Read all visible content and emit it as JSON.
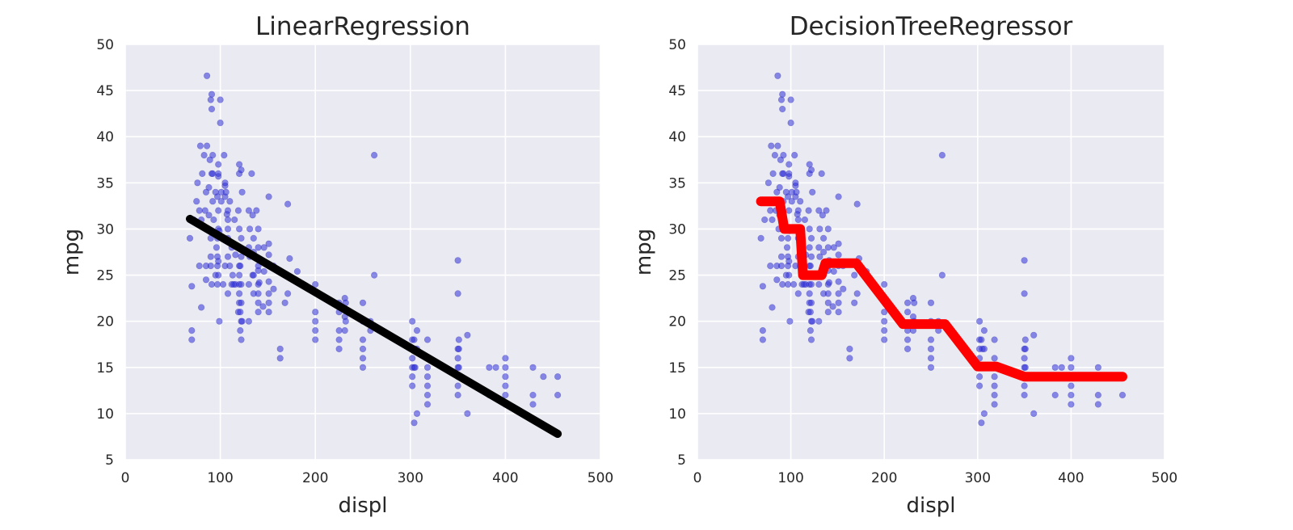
{
  "chart_data": [
    {
      "type": "scatter",
      "title": "LinearRegression",
      "xlabel": "displ",
      "ylabel": "mpg",
      "xlim": [
        0,
        500
      ],
      "ylim": [
        5,
        50
      ],
      "xticks": [
        0,
        100,
        200,
        300,
        400,
        500
      ],
      "yticks": [
        5,
        10,
        15,
        20,
        25,
        30,
        35,
        40,
        45,
        50
      ],
      "grid": true,
      "point_color": "#3030d8",
      "fit_color": "#000000",
      "fit_line": {
        "x": [
          68,
          455
        ],
        "y": [
          31.1,
          7.8
        ]
      }
    },
    {
      "type": "scatter",
      "title": "DecisionTreeRegressor",
      "xlabel": "displ",
      "ylabel": "mpg",
      "xlim": [
        0,
        500
      ],
      "ylim": [
        5,
        50
      ],
      "xticks": [
        0,
        100,
        200,
        300,
        400,
        500
      ],
      "yticks": [
        5,
        10,
        15,
        20,
        25,
        30,
        35,
        40,
        45,
        50
      ],
      "grid": true,
      "point_color": "#3030d8",
      "fit_color": "#ff0000",
      "fit_line": {
        "x": [
          68,
          88,
          93,
          110,
          113,
          117,
          133,
          137,
          170,
          220,
          225,
          265,
          300,
          320,
          350,
          455
        ],
        "y": [
          33,
          33,
          30,
          30,
          25,
          25,
          25,
          26.3,
          26.3,
          19.7,
          19.7,
          19.7,
          15.1,
          15.1,
          14.0,
          14.0
        ]
      }
    }
  ],
  "scatter_points": [
    [
      68,
      29
    ],
    [
      70,
      23.8
    ],
    [
      70,
      19
    ],
    [
      70,
      18
    ],
    [
      72,
      31
    ],
    [
      75,
      33
    ],
    [
      76,
      35
    ],
    [
      78,
      32
    ],
    [
      78,
      26
    ],
    [
      79,
      39
    ],
    [
      80,
      31
    ],
    [
      80,
      21.5
    ],
    [
      81,
      36
    ],
    [
      83,
      38
    ],
    [
      84,
      32
    ],
    [
      85,
      34
    ],
    [
      85,
      26
    ],
    [
      85,
      24.5
    ],
    [
      86,
      39
    ],
    [
      86,
      46.6
    ],
    [
      87,
      30
    ],
    [
      88,
      34.5
    ],
    [
      88,
      31.5
    ],
    [
      89,
      37.5
    ],
    [
      90,
      44
    ],
    [
      90,
      29
    ],
    [
      90,
      26
    ],
    [
      90,
      27
    ],
    [
      91,
      44.6
    ],
    [
      91,
      36
    ],
    [
      91,
      43
    ],
    [
      91,
      24
    ],
    [
      92,
      38
    ],
    [
      92,
      36
    ],
    [
      92,
      33
    ],
    [
      93,
      31
    ],
    [
      95,
      34
    ],
    [
      95,
      25
    ],
    [
      96,
      28
    ],
    [
      97,
      33.5
    ],
    [
      97,
      29
    ],
    [
      97,
      27
    ],
    [
      97,
      26
    ],
    [
      97,
      24
    ],
    [
      98,
      32
    ],
    [
      98,
      36
    ],
    [
      98,
      30
    ],
    [
      98,
      35.7
    ],
    [
      98,
      37
    ],
    [
      98,
      26.5
    ],
    [
      98,
      25
    ],
    [
      99,
      29.8
    ],
    [
      99,
      20
    ],
    [
      100,
      44
    ],
    [
      100,
      41.5
    ],
    [
      101,
      34
    ],
    [
      101,
      33
    ],
    [
      103,
      24
    ],
    [
      104,
      38
    ],
    [
      105,
      34.7
    ],
    [
      105,
      35
    ],
    [
      105,
      33.5
    ],
    [
      105,
      26
    ],
    [
      106,
      34
    ],
    [
      107,
      31.6
    ],
    [
      108,
      32
    ],
    [
      108,
      31
    ],
    [
      108,
      30
    ],
    [
      108,
      29
    ],
    [
      108,
      27
    ],
    [
      108,
      23
    ],
    [
      110,
      33
    ],
    [
      110,
      26
    ],
    [
      112,
      28
    ],
    [
      112,
      24
    ],
    [
      113,
      25
    ],
    [
      114,
      24
    ],
    [
      115,
      31
    ],
    [
      116,
      27.2
    ],
    [
      116,
      24
    ],
    [
      119,
      21
    ],
    [
      119,
      32
    ],
    [
      120,
      37
    ],
    [
      120,
      36
    ],
    [
      120,
      30
    ],
    [
      120,
      28
    ],
    [
      120,
      26
    ],
    [
      120,
      25
    ],
    [
      120,
      24
    ],
    [
      120,
      23
    ],
    [
      120,
      22
    ],
    [
      121,
      26
    ],
    [
      121,
      21
    ],
    [
      121,
      19
    ],
    [
      122,
      36.4
    ],
    [
      122,
      29
    ],
    [
      122,
      27
    ],
    [
      122,
      24
    ],
    [
      122,
      22
    ],
    [
      122,
      20
    ],
    [
      122,
      18
    ],
    [
      123,
      34
    ],
    [
      123,
      20
    ],
    [
      130,
      28
    ],
    [
      130,
      32
    ],
    [
      130,
      24
    ],
    [
      130,
      20
    ],
    [
      131,
      30
    ],
    [
      131,
      27
    ],
    [
      133,
      36
    ],
    [
      134,
      25
    ],
    [
      134,
      31.5
    ],
    [
      135,
      27.5
    ],
    [
      135,
      25
    ],
    [
      135,
      23
    ],
    [
      135,
      29
    ],
    [
      138,
      32
    ],
    [
      140,
      30
    ],
    [
      140,
      28
    ],
    [
      140,
      26
    ],
    [
      140,
      25.5
    ],
    [
      140,
      24
    ],
    [
      140,
      23
    ],
    [
      140,
      22
    ],
    [
      140,
      21
    ],
    [
      141,
      26.6
    ],
    [
      141,
      24.2
    ],
    [
      145,
      21.6
    ],
    [
      146,
      25.4
    ],
    [
      146,
      28
    ],
    [
      151,
      33.5
    ],
    [
      151,
      24.3
    ],
    [
      151,
      27.2
    ],
    [
      151,
      28.4
    ],
    [
      151,
      26
    ],
    [
      151,
      23
    ],
    [
      151,
      22
    ],
    [
      151,
      21
    ],
    [
      156,
      23.5
    ],
    [
      156,
      26
    ],
    [
      163,
      16
    ],
    [
      163,
      17
    ],
    [
      168,
      22
    ],
    [
      168,
      25
    ],
    [
      171,
      23
    ],
    [
      171,
      32.7
    ],
    [
      173,
      26.8
    ],
    [
      181,
      25.4
    ],
    [
      200,
      24
    ],
    [
      200,
      21
    ],
    [
      200,
      20
    ],
    [
      200,
      19
    ],
    [
      200,
      18
    ],
    [
      225,
      22
    ],
    [
      225,
      21
    ],
    [
      225,
      19
    ],
    [
      225,
      18
    ],
    [
      225,
      17
    ],
    [
      231,
      22.5
    ],
    [
      231,
      20.5
    ],
    [
      231,
      19
    ],
    [
      232,
      22
    ],
    [
      232,
      20
    ],
    [
      250,
      22
    ],
    [
      250,
      20
    ],
    [
      250,
      18
    ],
    [
      250,
      17
    ],
    [
      250,
      16
    ],
    [
      250,
      15
    ],
    [
      258,
      20
    ],
    [
      258,
      19
    ],
    [
      262,
      38
    ],
    [
      262,
      25
    ],
    [
      302,
      20
    ],
    [
      302,
      18
    ],
    [
      302,
      17
    ],
    [
      302,
      16
    ],
    [
      302,
      15
    ],
    [
      302,
      14
    ],
    [
      302,
      13
    ],
    [
      304,
      18
    ],
    [
      304,
      15
    ],
    [
      304,
      9
    ],
    [
      305,
      17
    ],
    [
      305,
      15
    ],
    [
      307,
      19
    ],
    [
      307,
      17
    ],
    [
      307,
      10
    ],
    [
      318,
      18
    ],
    [
      318,
      16
    ],
    [
      318,
      15
    ],
    [
      318,
      14
    ],
    [
      318,
      13
    ],
    [
      318,
      12
    ],
    [
      318,
      11
    ],
    [
      350,
      26.6
    ],
    [
      350,
      23
    ],
    [
      350,
      17
    ],
    [
      350,
      16
    ],
    [
      350,
      15
    ],
    [
      350,
      14
    ],
    [
      350,
      13
    ],
    [
      350,
      12
    ],
    [
      351,
      18
    ],
    [
      351,
      17
    ],
    [
      351,
      15
    ],
    [
      351,
      14
    ],
    [
      360,
      18.5
    ],
    [
      360,
      10
    ],
    [
      383,
      15
    ],
    [
      383,
      12
    ],
    [
      390,
      15
    ],
    [
      400,
      16
    ],
    [
      400,
      15
    ],
    [
      400,
      14
    ],
    [
      400,
      13
    ],
    [
      400,
      12
    ],
    [
      400,
      11
    ],
    [
      429,
      15
    ],
    [
      429,
      12
    ],
    [
      429,
      11
    ],
    [
      440,
      14
    ],
    [
      455,
      14
    ],
    [
      455,
      12
    ]
  ]
}
